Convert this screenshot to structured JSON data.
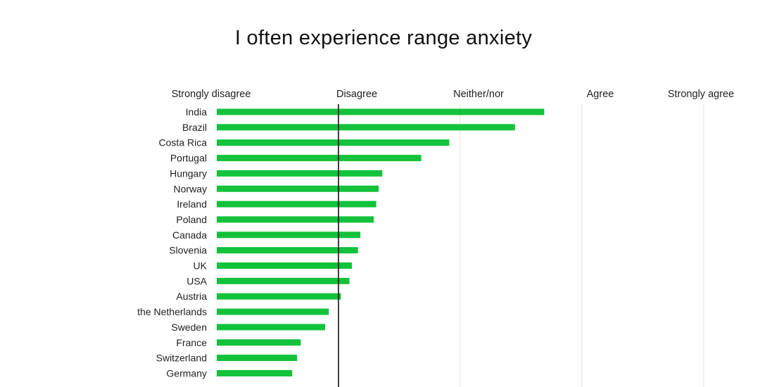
{
  "chart_data": {
    "type": "bar",
    "orientation": "horizontal",
    "title": "I often experience range anxiety",
    "categories": [
      "India",
      "Brazil",
      "Costa Rica",
      "Portugal",
      "Hungary",
      "Norway",
      "Ireland",
      "Poland",
      "Canada",
      "Slovenia",
      "UK",
      "USA",
      "Austria",
      "the Netherlands",
      "Sweden",
      "France",
      "Switzerland",
      "Germany"
    ],
    "values": [
      3.69,
      3.45,
      2.91,
      2.68,
      2.36,
      2.33,
      2.31,
      2.29,
      2.18,
      2.16,
      2.11,
      2.09,
      2.02,
      1.92,
      1.89,
      1.69,
      1.66,
      1.62
    ],
    "x_ticks": [
      {
        "value": 1,
        "label": "Strongly disagree"
      },
      {
        "value": 2,
        "label": "Disagree"
      },
      {
        "value": 3,
        "label": "Neither/nor"
      },
      {
        "value": 4,
        "label": "Agree"
      },
      {
        "value": 5,
        "label": "Strongly agree"
      }
    ],
    "xlim": [
      1,
      5
    ],
    "reference_line": 2,
    "grid": true,
    "bar_color": "#12c23a",
    "reference_line_color": "#000000",
    "grid_color": "#e2e2e2"
  }
}
